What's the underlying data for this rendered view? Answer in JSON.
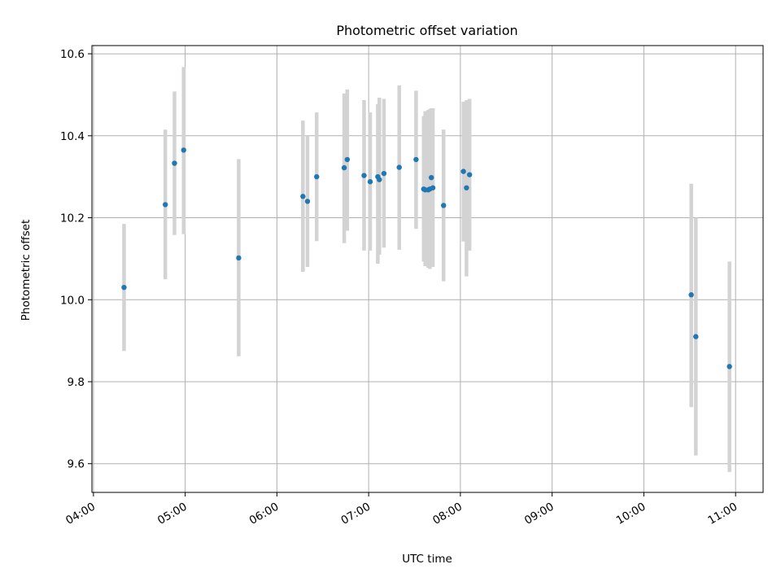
{
  "chart_data": {
    "type": "scatter",
    "title": "Photometric offset variation",
    "xlabel": "UTC time",
    "ylabel": "Photometric offset",
    "xlim": [
      "03:59",
      "11:18"
    ],
    "ylim": [
      9.53,
      10.62
    ],
    "x_ticks": [
      "04:00",
      "05:00",
      "06:00",
      "07:00",
      "08:00",
      "09:00",
      "10:00",
      "11:00"
    ],
    "y_ticks": [
      9.6,
      9.8,
      10.0,
      10.2,
      10.4,
      10.6
    ],
    "y_tick_labels": [
      "9.6",
      "9.8",
      "10.0",
      "10.2",
      "10.4",
      "10.6"
    ],
    "grid": true,
    "marker_color": "#1f77b4",
    "errorbar_color": "#d3d3d3",
    "points": [
      {
        "time": "04:20",
        "value": 10.03,
        "low": 9.875,
        "high": 10.185
      },
      {
        "time": "04:47",
        "value": 10.232,
        "low": 10.05,
        "high": 10.415
      },
      {
        "time": "04:53",
        "value": 10.333,
        "low": 10.158,
        "high": 10.508
      },
      {
        "time": "04:59",
        "value": 10.365,
        "low": 10.16,
        "high": 10.568
      },
      {
        "time": "05:35",
        "value": 10.102,
        "low": 9.862,
        "high": 10.343
      },
      {
        "time": "06:17",
        "value": 10.252,
        "low": 10.068,
        "high": 10.437
      },
      {
        "time": "06:20",
        "value": 10.24,
        "low": 10.08,
        "high": 10.4
      },
      {
        "time": "06:26",
        "value": 10.3,
        "low": 10.143,
        "high": 10.457
      },
      {
        "time": "06:44",
        "value": 10.322,
        "low": 10.138,
        "high": 10.503
      },
      {
        "time": "06:46",
        "value": 10.342,
        "low": 10.168,
        "high": 10.513
      },
      {
        "time": "06:57",
        "value": 10.303,
        "low": 10.12,
        "high": 10.487
      },
      {
        "time": "07:01",
        "value": 10.288,
        "low": 10.12,
        "high": 10.457
      },
      {
        "time": "07:06",
        "value": 10.3,
        "low": 10.088,
        "high": 10.477
      },
      {
        "time": "07:07",
        "value": 10.293,
        "low": 10.11,
        "high": 10.493
      },
      {
        "time": "07:10",
        "value": 10.308,
        "low": 10.127,
        "high": 10.49
      },
      {
        "time": "07:20",
        "value": 10.323,
        "low": 10.122,
        "high": 10.523
      },
      {
        "time": "07:31",
        "value": 10.342,
        "low": 10.173,
        "high": 10.51
      },
      {
        "time": "07:36",
        "value": 10.27,
        "low": 10.093,
        "high": 10.448
      },
      {
        "time": "07:37",
        "value": 10.268,
        "low": 10.082,
        "high": 10.46
      },
      {
        "time": "07:39",
        "value": 10.268,
        "low": 10.078,
        "high": 10.463
      },
      {
        "time": "07:40",
        "value": 10.27,
        "low": 10.075,
        "high": 10.465
      },
      {
        "time": "07:41",
        "value": 10.298,
        "low": 10.128,
        "high": 10.467
      },
      {
        "time": "07:42",
        "value": 10.273,
        "low": 10.08,
        "high": 10.467
      },
      {
        "time": "07:49",
        "value": 10.23,
        "low": 10.045,
        "high": 10.415
      },
      {
        "time": "08:02",
        "value": 10.313,
        "low": 10.142,
        "high": 10.483
      },
      {
        "time": "08:04",
        "value": 10.273,
        "low": 10.057,
        "high": 10.487
      },
      {
        "time": "08:06",
        "value": 10.305,
        "low": 10.12,
        "high": 10.49
      },
      {
        "time": "10:31",
        "value": 10.012,
        "low": 9.738,
        "high": 10.283
      },
      {
        "time": "10:34",
        "value": 9.91,
        "low": 9.62,
        "high": 10.2
      },
      {
        "time": "10:56",
        "value": 9.837,
        "low": 9.58,
        "high": 10.093
      }
    ]
  }
}
